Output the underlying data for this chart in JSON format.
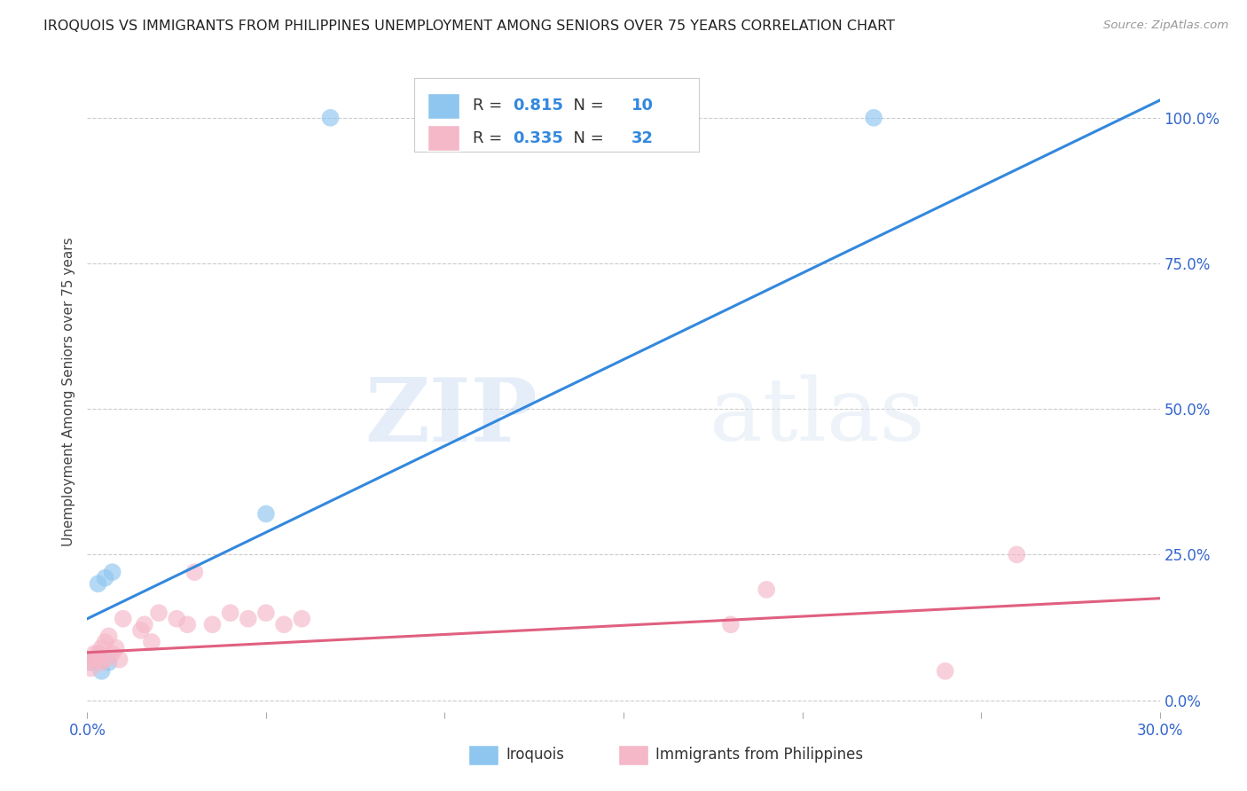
{
  "title": "IROQUOIS VS IMMIGRANTS FROM PHILIPPINES UNEMPLOYMENT AMONG SENIORS OVER 75 YEARS CORRELATION CHART",
  "source": "Source: ZipAtlas.com",
  "ylabel": "Unemployment Among Seniors over 75 years",
  "right_yticks": [
    "0.0%",
    "25.0%",
    "50.0%",
    "75.0%",
    "100.0%"
  ],
  "right_ytick_values": [
    0.0,
    0.25,
    0.5,
    0.75,
    1.0
  ],
  "blue_R": 0.815,
  "blue_N": 10,
  "pink_R": 0.335,
  "pink_N": 32,
  "blue_color": "#8ec6f0",
  "pink_color": "#f5b8c8",
  "blue_line_color": "#3388dd",
  "pink_line_color": "#e06080",
  "watermark_zip": "ZIP",
  "watermark_atlas": "atlas",
  "iroquois_x": [
    0.001,
    0.002,
    0.003,
    0.004,
    0.005,
    0.006,
    0.007,
    0.05,
    0.068,
    0.22
  ],
  "iroquois_y": [
    0.065,
    0.07,
    0.2,
    0.05,
    0.21,
    0.065,
    0.22,
    0.32,
    1.0,
    1.0
  ],
  "immigrants_x": [
    0.001,
    0.001,
    0.002,
    0.002,
    0.003,
    0.003,
    0.004,
    0.004,
    0.005,
    0.005,
    0.006,
    0.007,
    0.008,
    0.009,
    0.01,
    0.015,
    0.016,
    0.018,
    0.02,
    0.025,
    0.028,
    0.03,
    0.035,
    0.04,
    0.045,
    0.05,
    0.055,
    0.06,
    0.18,
    0.19,
    0.24,
    0.26
  ],
  "immigrants_y": [
    0.055,
    0.065,
    0.08,
    0.07,
    0.07,
    0.08,
    0.065,
    0.09,
    0.07,
    0.1,
    0.11,
    0.08,
    0.09,
    0.07,
    0.14,
    0.12,
    0.13,
    0.1,
    0.15,
    0.14,
    0.13,
    0.22,
    0.13,
    0.15,
    0.14,
    0.15,
    0.13,
    0.14,
    0.13,
    0.19,
    0.05,
    0.25
  ],
  "xlim": [
    0.0,
    0.3
  ],
  "ylim": [
    -0.02,
    1.08
  ],
  "blue_trend_x": [
    0.0,
    0.3
  ],
  "blue_trend_y": [
    0.14,
    1.03
  ],
  "pink_trend_y": [
    0.082,
    0.175
  ]
}
